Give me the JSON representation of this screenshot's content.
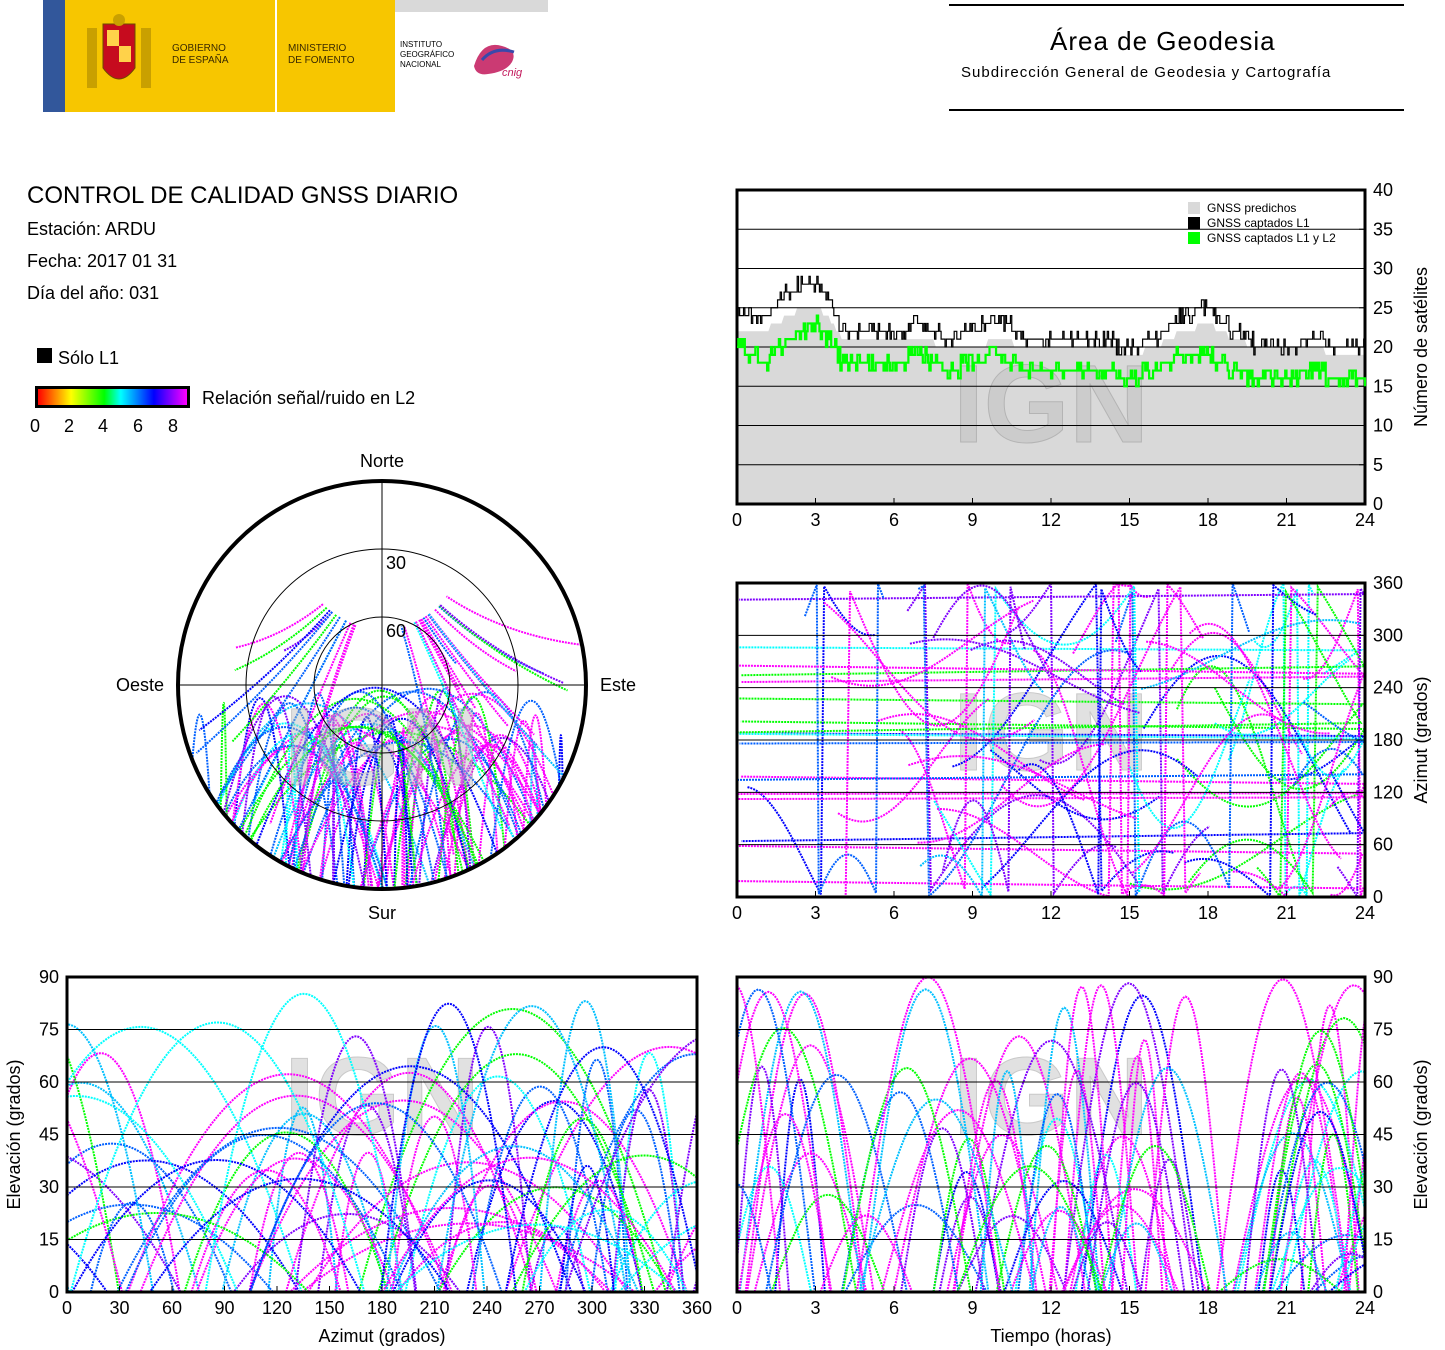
{
  "header": {
    "gov_line1": "GOBIERNO",
    "gov_line2": "DE ESPAÑA",
    "min_line1": "MINISTERIO",
    "min_line2": "DE FOMENTO",
    "inst_line1": "INSTITUTO",
    "inst_line2": "GEOGRÁFICO",
    "inst_line3": "NACIONAL",
    "cnig": "cnig",
    "area_title": "Área de Geodesia",
    "area_subtitle": "Subdirección General de Geodesia y Cartografía"
  },
  "info": {
    "title": "CONTROL DE CALIDAD GNSS DIARIO",
    "station": "Estación: ARDU",
    "date": "Fecha: 2017 01 31",
    "doy": "Día del año: 031"
  },
  "legend": {
    "only_l1": "Sólo L1",
    "snr_label": "Relación señal/ruido en L2",
    "snr_ticks": [
      "0",
      "2",
      "4",
      "6",
      "8"
    ],
    "colors": [
      "#000000",
      "#ff0000",
      "#ffff00",
      "#00ff00",
      "#00ffff",
      "#0000ff",
      "#ff00ff"
    ]
  },
  "watermark": "IGN",
  "chart_data": [
    {
      "type": "area",
      "id": "satellites",
      "ylabel": "Número de satélites",
      "xlim": [
        0,
        24
      ],
      "ylim": [
        0,
        40
      ],
      "xticks": [
        0,
        3,
        6,
        9,
        12,
        15,
        18,
        21,
        24
      ],
      "yticks": [
        0,
        5,
        10,
        15,
        20,
        25,
        30,
        35,
        40
      ],
      "grid": true,
      "legend_position": "top-right",
      "legend": [
        {
          "name": "GNSS predichos",
          "color": "#d9d9d9"
        },
        {
          "name": "GNSS captados L1",
          "color": "#000000"
        },
        {
          "name": "GNSS captados L1 y L2",
          "color": "#00ff00"
        }
      ],
      "x": [
        0,
        1,
        2,
        2.5,
        3,
        3.5,
        4,
        5,
        6,
        7,
        8,
        9,
        10,
        11,
        12,
        13,
        14,
        15,
        16,
        17,
        18,
        19,
        20,
        21,
        22,
        23,
        24
      ],
      "series": [
        {
          "name": "GNSS predichos",
          "values": [
            22,
            22,
            24,
            25,
            25,
            24,
            21,
            21,
            21,
            21,
            20,
            20,
            21,
            20,
            20,
            20,
            20,
            19,
            20,
            22,
            23,
            21,
            20,
            20,
            20,
            19,
            19
          ]
        },
        {
          "name": "GNSS captados L1",
          "values": [
            24,
            24,
            27,
            28,
            28,
            26,
            22,
            22,
            22,
            23,
            21,
            22,
            24,
            21,
            21,
            21,
            21,
            20,
            21,
            24,
            25,
            22,
            20,
            20,
            21,
            20,
            20
          ]
        },
        {
          "name": "GNSS captados L1 y L2",
          "values": [
            20,
            18,
            21,
            22,
            23,
            21,
            18,
            18,
            18,
            19,
            17,
            18,
            19,
            17,
            17,
            17,
            17,
            16,
            17,
            19,
            19,
            17,
            16,
            16,
            17,
            16,
            16
          ]
        }
      ]
    },
    {
      "type": "scatter",
      "id": "azimuth-time",
      "ylabel": "Azimut (grados)",
      "xlim": [
        0,
        24
      ],
      "ylim": [
        0,
        360
      ],
      "xticks": [
        0,
        3,
        6,
        9,
        12,
        15,
        18,
        21,
        24
      ],
      "yticks": [
        0,
        60,
        120,
        180,
        240,
        300,
        360
      ],
      "grid": true
    },
    {
      "type": "scatter",
      "id": "skyplot",
      "north": "Norte",
      "south": "Sur",
      "west": "Oeste",
      "east": "Este",
      "rings": [
        "30",
        "60"
      ]
    },
    {
      "type": "scatter",
      "id": "elevation-azimuth",
      "xlabel": "Azimut (grados)",
      "ylabel": "Elevación (grados)",
      "xlim": [
        0,
        360
      ],
      "ylim": [
        0,
        90
      ],
      "xticks": [
        0,
        30,
        60,
        90,
        120,
        150,
        180,
        210,
        240,
        270,
        300,
        330,
        360
      ],
      "yticks": [
        0,
        15,
        30,
        45,
        60,
        75,
        90
      ],
      "grid": true
    },
    {
      "type": "scatter",
      "id": "elevation-time",
      "xlabel": "Tiempo (horas)",
      "ylabel": "Elevación (grados)",
      "xlim": [
        0,
        24
      ],
      "ylim": [
        0,
        90
      ],
      "xticks": [
        0,
        3,
        6,
        9,
        12,
        15,
        18,
        21,
        24
      ],
      "yticks": [
        0,
        15,
        30,
        45,
        60,
        75,
        90
      ],
      "grid": true
    }
  ]
}
